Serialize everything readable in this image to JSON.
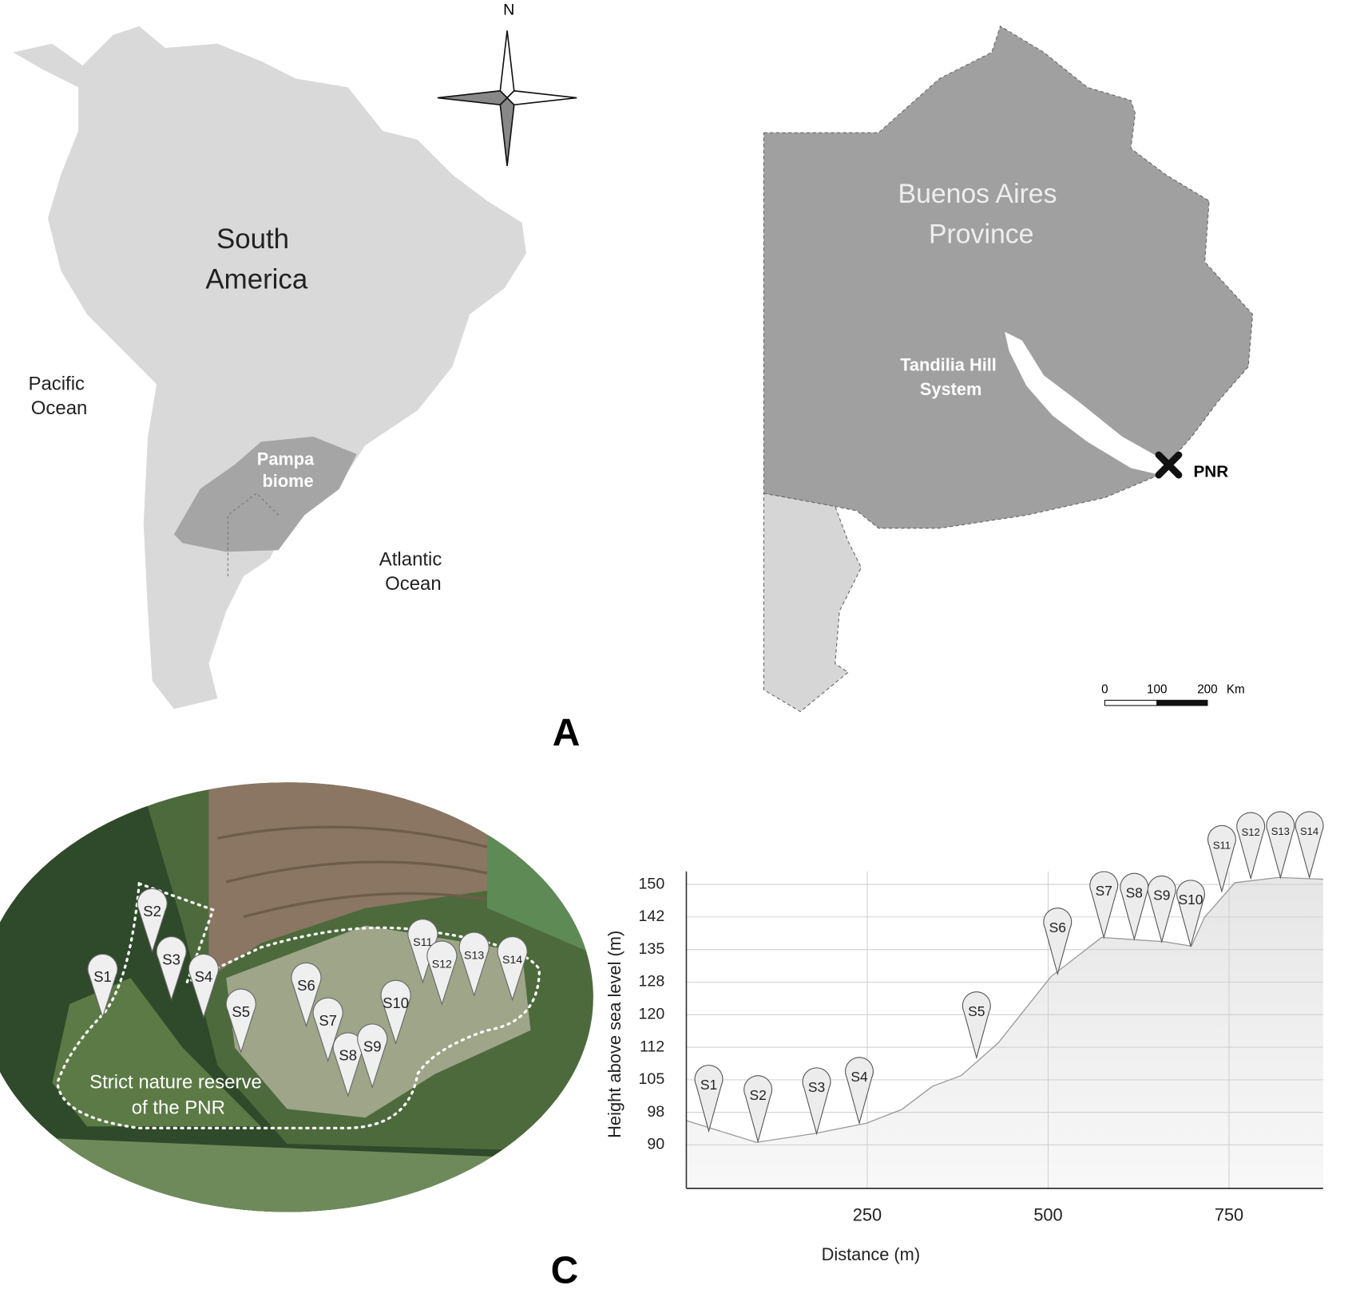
{
  "map_a": {
    "compass": "N",
    "continent": [
      "South",
      "America"
    ],
    "pacific": [
      "Pacific",
      "Ocean"
    ],
    "atlantic": [
      "Atlantic",
      "Ocean"
    ],
    "biome": [
      "Pampa",
      "biome"
    ],
    "province": [
      "Buenos Aires",
      "Province"
    ],
    "hills": [
      "Tandilia Hill",
      "System"
    ],
    "site": "PNR",
    "scale": {
      "ticks": [
        0,
        100,
        200
      ],
      "unit": "Km"
    },
    "panel_label": "A"
  },
  "satellite": {
    "reserve_label": [
      "Strict nature reserve",
      "of the PNR"
    ],
    "panel_label": "C"
  },
  "chart_data": {
    "type": "area",
    "xlabel": "Distance (m)",
    "ylabel": "Height above sea level (m)",
    "x": [
      0,
      97,
      176,
      249,
      298,
      340,
      380,
      431,
      504,
      574,
      661,
      698,
      716,
      758,
      818,
      880
    ],
    "values": [
      95.6,
      90.6,
      92.6,
      95,
      98.2,
      103.5,
      106,
      113.5,
      128.8,
      137.8,
      136.8,
      135.8,
      142.4,
      150.4,
      151.6,
      151.2
    ],
    "color": "#ebebeb",
    "xlim": [
      0,
      880
    ],
    "ylim": [
      80,
      153
    ],
    "xticks": [
      250,
      500,
      750
    ],
    "yticks": [
      90,
      {
        "value": 97.5,
        "label": "98"
      },
      105,
      {
        "value": 112.5,
        "label": "112"
      },
      120,
      {
        "value": 127.5,
        "label": "128"
      },
      135,
      {
        "value": 142.5,
        "label": "142"
      },
      150
    ],
    "grid": true,
    "sites": {
      "names": [
        "S1",
        "S2",
        "S3",
        "S4",
        "S5",
        "S6",
        "S7",
        "S8",
        "S9",
        "S10",
        "S11",
        "S12",
        "S13",
        "S14"
      ],
      "x": [
        31,
        99,
        180,
        239,
        401,
        513,
        577,
        619,
        657,
        697,
        740,
        780,
        821,
        861
      ],
      "values": [
        93.2,
        90.8,
        92.6,
        95,
        110.1,
        129.4,
        137.8,
        137.4,
        136.8,
        135.8,
        148.4,
        151.4,
        151.6,
        151.6
      ]
    }
  }
}
